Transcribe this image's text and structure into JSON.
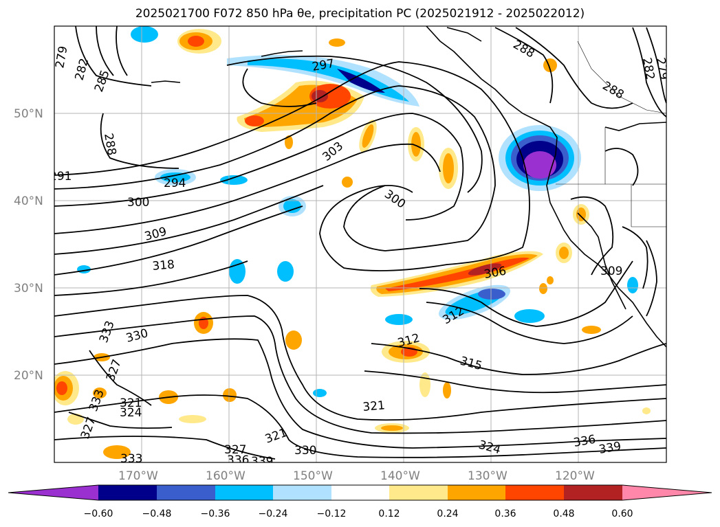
{
  "title": "2025021700 F072 850 hPa θe, precipitation PC (2025021912 - 2025022012)",
  "lat_labels": [
    "50°N",
    "40°N",
    "30°N",
    "20°N"
  ],
  "lon_labels": [
    "170°W",
    "160°W",
    "150°W",
    "140°W",
    "130°W",
    "120°W"
  ],
  "contour_labels": [
    "279",
    "282",
    "285",
    "288",
    "291",
    "294",
    "297",
    "300",
    "300",
    "303",
    "306",
    "309",
    "309",
    "312",
    "312",
    "315",
    "318",
    "321",
    "321",
    "321",
    "324",
    "324",
    "327",
    "327",
    "327",
    "330",
    "330",
    "333",
    "333",
    "333",
    "336",
    "336",
    "339",
    "339",
    "288",
    "288",
    "282",
    "279"
  ],
  "colorbar": {
    "ticks": [
      "−0.60",
      "−0.48",
      "−0.36",
      "−0.24",
      "−0.12",
      "0.12",
      "0.24",
      "0.36",
      "0.48",
      "0.60"
    ],
    "colors": [
      "#9b30d0",
      "#00008b",
      "#3a5fcd",
      "#00bfff",
      "#b0e2ff",
      "#ffffff",
      "#ffe98a",
      "#ffa500",
      "#ff4500",
      "#b22222",
      "#ff88aa"
    ]
  }
}
